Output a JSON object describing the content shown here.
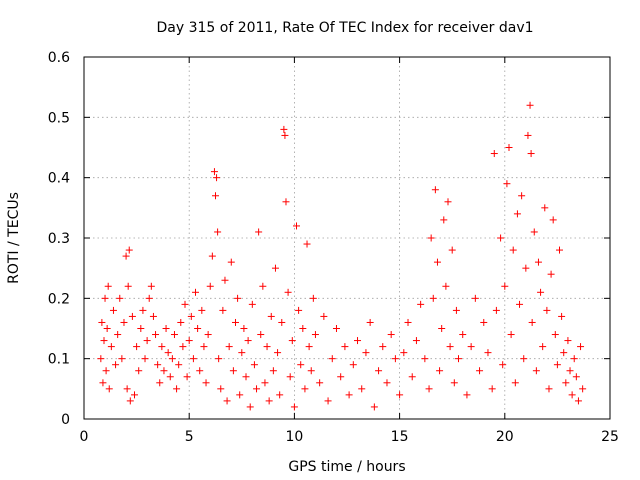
{
  "chart_data": {
    "type": "scatter",
    "title": "Day 315 of 2011, Rate Of TEC Index for receiver dav1",
    "xlabel": "GPS time / hours",
    "ylabel": "ROTI / TECUs",
    "xlim": [
      0,
      25
    ],
    "ylim": [
      0,
      0.6
    ],
    "x_ticks": [
      "0",
      "5",
      "10",
      "15",
      "20",
      "25"
    ],
    "y_ticks": [
      "0",
      "0.1",
      "0.2",
      "0.3",
      "0.4",
      "0.5",
      "0.6"
    ],
    "x_tick_values": [
      0,
      5,
      10,
      15,
      20,
      25
    ],
    "y_tick_values": [
      0,
      0.1,
      0.2,
      0.3,
      0.4,
      0.5,
      0.6
    ],
    "grid": true,
    "marker": "+",
    "color": "#ff0000",
    "series": [
      {
        "points": [
          [
            0.8,
            0.1
          ],
          [
            0.85,
            0.16
          ],
          [
            0.9,
            0.06
          ],
          [
            0.95,
            0.13
          ],
          [
            1.0,
            0.2
          ],
          [
            1.05,
            0.08
          ],
          [
            1.1,
            0.15
          ],
          [
            1.15,
            0.22
          ],
          [
            1.2,
            0.05
          ],
          [
            1.3,
            0.12
          ],
          [
            1.4,
            0.18
          ],
          [
            1.5,
            0.09
          ],
          [
            1.6,
            0.14
          ],
          [
            1.7,
            0.2
          ],
          [
            1.8,
            0.1
          ],
          [
            1.9,
            0.16
          ],
          [
            2.0,
            0.27
          ],
          [
            2.05,
            0.05
          ],
          [
            2.1,
            0.22
          ],
          [
            2.15,
            0.28
          ],
          [
            2.2,
            0.03
          ],
          [
            2.3,
            0.17
          ],
          [
            2.4,
            0.04
          ],
          [
            2.5,
            0.12
          ],
          [
            2.6,
            0.08
          ],
          [
            2.7,
            0.15
          ],
          [
            2.8,
            0.18
          ],
          [
            2.9,
            0.1
          ],
          [
            3.0,
            0.13
          ],
          [
            3.1,
            0.2
          ],
          [
            3.2,
            0.22
          ],
          [
            3.3,
            0.17
          ],
          [
            3.4,
            0.14
          ],
          [
            3.5,
            0.09
          ],
          [
            3.6,
            0.06
          ],
          [
            3.7,
            0.12
          ],
          [
            3.8,
            0.08
          ],
          [
            3.9,
            0.15
          ],
          [
            4.0,
            0.11
          ],
          [
            4.1,
            0.07
          ],
          [
            4.2,
            0.1
          ],
          [
            4.3,
            0.14
          ],
          [
            4.4,
            0.05
          ],
          [
            4.5,
            0.09
          ],
          [
            4.6,
            0.16
          ],
          [
            4.7,
            0.12
          ],
          [
            4.8,
            0.19
          ],
          [
            4.9,
            0.07
          ],
          [
            5.0,
            0.13
          ],
          [
            5.1,
            0.17
          ],
          [
            5.2,
            0.1
          ],
          [
            5.3,
            0.21
          ],
          [
            5.4,
            0.15
          ],
          [
            5.5,
            0.08
          ],
          [
            5.6,
            0.18
          ],
          [
            5.7,
            0.12
          ],
          [
            5.8,
            0.06
          ],
          [
            5.9,
            0.14
          ],
          [
            6.0,
            0.22
          ],
          [
            6.1,
            0.27
          ],
          [
            6.2,
            0.41
          ],
          [
            6.25,
            0.37
          ],
          [
            6.3,
            0.4
          ],
          [
            6.35,
            0.31
          ],
          [
            6.4,
            0.1
          ],
          [
            6.5,
            0.05
          ],
          [
            6.6,
            0.18
          ],
          [
            6.7,
            0.23
          ],
          [
            6.8,
            0.03
          ],
          [
            6.9,
            0.12
          ],
          [
            7.0,
            0.26
          ],
          [
            7.1,
            0.08
          ],
          [
            7.2,
            0.16
          ],
          [
            7.3,
            0.2
          ],
          [
            7.4,
            0.04
          ],
          [
            7.5,
            0.11
          ],
          [
            7.6,
            0.15
          ],
          [
            7.7,
            0.07
          ],
          [
            7.8,
            0.13
          ],
          [
            7.9,
            0.02
          ],
          [
            8.0,
            0.19
          ],
          [
            8.1,
            0.09
          ],
          [
            8.2,
            0.05
          ],
          [
            8.3,
            0.31
          ],
          [
            8.4,
            0.14
          ],
          [
            8.5,
            0.22
          ],
          [
            8.6,
            0.06
          ],
          [
            8.7,
            0.12
          ],
          [
            8.8,
            0.03
          ],
          [
            8.9,
            0.17
          ],
          [
            9.0,
            0.08
          ],
          [
            9.1,
            0.25
          ],
          [
            9.2,
            0.11
          ],
          [
            9.3,
            0.04
          ],
          [
            9.4,
            0.16
          ],
          [
            9.5,
            0.48
          ],
          [
            9.55,
            0.47
          ],
          [
            9.6,
            0.36
          ],
          [
            9.7,
            0.21
          ],
          [
            9.8,
            0.07
          ],
          [
            9.9,
            0.13
          ],
          [
            10.0,
            0.02
          ],
          [
            10.1,
            0.32
          ],
          [
            10.2,
            0.18
          ],
          [
            10.3,
            0.09
          ],
          [
            10.4,
            0.15
          ],
          [
            10.5,
            0.05
          ],
          [
            10.6,
            0.29
          ],
          [
            10.7,
            0.12
          ],
          [
            10.8,
            0.08
          ],
          [
            10.9,
            0.2
          ],
          [
            11.0,
            0.14
          ],
          [
            11.2,
            0.06
          ],
          [
            11.4,
            0.17
          ],
          [
            11.6,
            0.03
          ],
          [
            11.8,
            0.1
          ],
          [
            12.0,
            0.15
          ],
          [
            12.2,
            0.07
          ],
          [
            12.4,
            0.12
          ],
          [
            12.6,
            0.04
          ],
          [
            12.8,
            0.09
          ],
          [
            13.0,
            0.13
          ],
          [
            13.2,
            0.05
          ],
          [
            13.4,
            0.11
          ],
          [
            13.6,
            0.16
          ],
          [
            13.8,
            0.02
          ],
          [
            14.0,
            0.08
          ],
          [
            14.2,
            0.12
          ],
          [
            14.4,
            0.06
          ],
          [
            14.6,
            0.14
          ],
          [
            14.8,
            0.1
          ],
          [
            15.0,
            0.04
          ],
          [
            15.2,
            0.11
          ],
          [
            15.4,
            0.16
          ],
          [
            15.6,
            0.07
          ],
          [
            15.8,
            0.13
          ],
          [
            16.0,
            0.19
          ],
          [
            16.2,
            0.1
          ],
          [
            16.4,
            0.05
          ],
          [
            16.5,
            0.3
          ],
          [
            16.6,
            0.2
          ],
          [
            16.7,
            0.38
          ],
          [
            16.8,
            0.26
          ],
          [
            16.9,
            0.08
          ],
          [
            17.0,
            0.15
          ],
          [
            17.1,
            0.33
          ],
          [
            17.2,
            0.22
          ],
          [
            17.3,
            0.36
          ],
          [
            17.4,
            0.12
          ],
          [
            17.5,
            0.28
          ],
          [
            17.6,
            0.06
          ],
          [
            17.7,
            0.18
          ],
          [
            17.8,
            0.1
          ],
          [
            18.0,
            0.14
          ],
          [
            18.2,
            0.04
          ],
          [
            18.4,
            0.12
          ],
          [
            18.6,
            0.2
          ],
          [
            18.8,
            0.08
          ],
          [
            19.0,
            0.16
          ],
          [
            19.2,
            0.11
          ],
          [
            19.4,
            0.05
          ],
          [
            19.5,
            0.44
          ],
          [
            19.6,
            0.18
          ],
          [
            19.8,
            0.3
          ],
          [
            19.9,
            0.09
          ],
          [
            20.0,
            0.22
          ],
          [
            20.1,
            0.39
          ],
          [
            20.2,
            0.45
          ],
          [
            20.3,
            0.14
          ],
          [
            20.4,
            0.28
          ],
          [
            20.5,
            0.06
          ],
          [
            20.6,
            0.34
          ],
          [
            20.7,
            0.19
          ],
          [
            20.8,
            0.37
          ],
          [
            20.9,
            0.1
          ],
          [
            21.0,
            0.25
          ],
          [
            21.1,
            0.47
          ],
          [
            21.2,
            0.52
          ],
          [
            21.25,
            0.44
          ],
          [
            21.3,
            0.16
          ],
          [
            21.4,
            0.31
          ],
          [
            21.5,
            0.08
          ],
          [
            21.6,
            0.26
          ],
          [
            21.7,
            0.21
          ],
          [
            21.8,
            0.12
          ],
          [
            21.9,
            0.35
          ],
          [
            22.0,
            0.18
          ],
          [
            22.1,
            0.05
          ],
          [
            22.2,
            0.24
          ],
          [
            22.3,
            0.33
          ],
          [
            22.4,
            0.14
          ],
          [
            22.5,
            0.09
          ],
          [
            22.6,
            0.28
          ],
          [
            22.7,
            0.17
          ],
          [
            22.8,
            0.11
          ],
          [
            22.9,
            0.06
          ],
          [
            23.0,
            0.13
          ],
          [
            23.1,
            0.08
          ],
          [
            23.2,
            0.04
          ],
          [
            23.3,
            0.1
          ],
          [
            23.4,
            0.07
          ],
          [
            23.5,
            0.03
          ],
          [
            23.6,
            0.12
          ],
          [
            23.7,
            0.05
          ]
        ]
      }
    ]
  }
}
